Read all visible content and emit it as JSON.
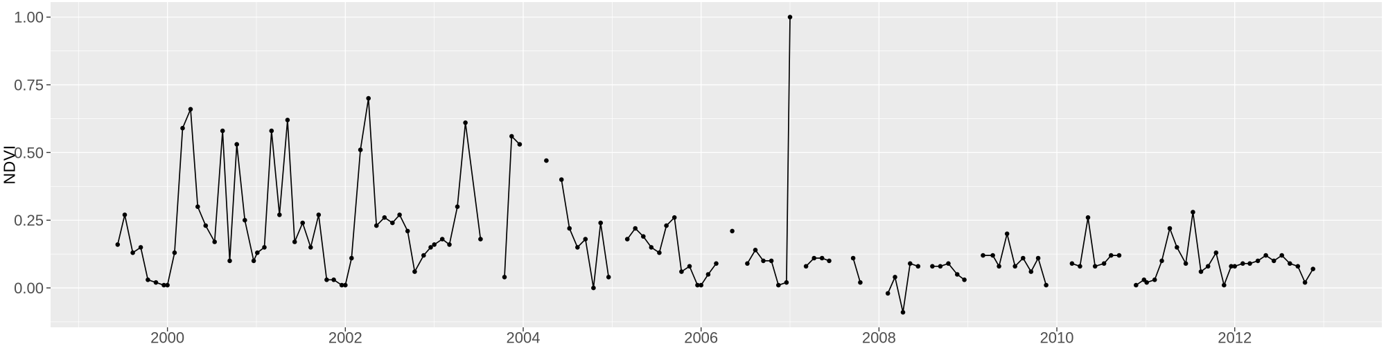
{
  "figure": {
    "kind": "ggplot-time-series",
    "ylabel": "NDVI"
  },
  "chart_data": {
    "type": "line",
    "title": "",
    "xlabel": "",
    "ylabel": "NDVI",
    "legend": null,
    "grid": "major-and-minor",
    "colors": {
      "panel_bg": "#EBEBEB",
      "grid": "#FFFFFF",
      "line": "#000000",
      "point": "#000000",
      "tick_label": "#4D4D4D",
      "axis_title": "#000000",
      "tick_mark": "#333333",
      "figure_bg": "#FFFFFF"
    },
    "x_axis": {
      "range": [
        1998.686,
        2013.654
      ],
      "major_ticks": [
        2000,
        2002,
        2004,
        2006,
        2008,
        2010,
        2012
      ],
      "tick_labels": [
        "2000",
        "2002",
        "2004",
        "2006",
        "2008",
        "2010",
        "2012"
      ],
      "minor_ticks": [
        1999,
        2001,
        2003,
        2005,
        2007,
        2009,
        2011,
        2013
      ]
    },
    "y_axis": {
      "range": [
        -0.1455,
        1.0555
      ],
      "major_ticks": [
        0,
        0.25,
        0.5,
        0.75,
        1
      ],
      "tick_labels": [
        "0.00",
        "0.25",
        "0.50",
        "0.75",
        "1.00"
      ],
      "minor_ticks": [
        -0.125,
        0.125,
        0.375,
        0.625,
        0.875
      ]
    },
    "series": [
      {
        "name": "NDVI",
        "segments": [
          [
            [
              1999.44,
              0.16
            ],
            [
              1999.52,
              0.27
            ],
            [
              1999.61,
              0.13
            ],
            [
              1999.7,
              0.15
            ],
            [
              1999.78,
              0.03
            ],
            [
              1999.87,
              0.02
            ],
            [
              1999.96,
              0.01
            ],
            [
              2000.0,
              0.01
            ],
            [
              2000.08,
              0.13
            ],
            [
              2000.17,
              0.59
            ],
            [
              2000.26,
              0.66
            ],
            [
              2000.34,
              0.3
            ],
            [
              2000.43,
              0.23
            ],
            [
              2000.53,
              0.17
            ],
            [
              2000.62,
              0.58
            ],
            [
              2000.7,
              0.1
            ],
            [
              2000.78,
              0.53
            ],
            [
              2000.87,
              0.25
            ],
            [
              2000.97,
              0.1
            ],
            [
              2001.01,
              0.13
            ],
            [
              2001.09,
              0.15
            ],
            [
              2001.17,
              0.58
            ],
            [
              2001.26,
              0.27
            ],
            [
              2001.35,
              0.62
            ],
            [
              2001.43,
              0.17
            ],
            [
              2001.52,
              0.24
            ],
            [
              2001.61,
              0.15
            ],
            [
              2001.7,
              0.27
            ],
            [
              2001.79,
              0.03
            ],
            [
              2001.87,
              0.03
            ],
            [
              2001.96,
              0.01
            ],
            [
              2002.0,
              0.01
            ],
            [
              2002.07,
              0.11
            ],
            [
              2002.17,
              0.51
            ],
            [
              2002.26,
              0.7
            ],
            [
              2002.35,
              0.23
            ],
            [
              2002.44,
              0.26
            ],
            [
              2002.53,
              0.24
            ],
            [
              2002.61,
              0.27
            ],
            [
              2002.7,
              0.21
            ],
            [
              2002.78,
              0.06
            ],
            [
              2002.88,
              0.12
            ],
            [
              2002.96,
              0.15
            ],
            [
              2003.0,
              0.16
            ],
            [
              2003.09,
              0.18
            ],
            [
              2003.17,
              0.16
            ],
            [
              2003.26,
              0.3
            ],
            [
              2003.35,
              0.61
            ],
            [
              2003.52,
              0.18
            ]
          ],
          [
            [
              2003.79,
              0.04
            ],
            [
              2003.87,
              0.56
            ],
            [
              2003.96,
              0.53
            ]
          ],
          [
            [
              2004.26,
              0.47
            ]
          ],
          [
            [
              2004.43,
              0.4
            ],
            [
              2004.52,
              0.22
            ],
            [
              2004.61,
              0.15
            ],
            [
              2004.7,
              0.18
            ],
            [
              2004.79,
              0.0
            ],
            [
              2004.87,
              0.24
            ],
            [
              2004.96,
              0.04
            ]
          ],
          [
            [
              2005.17,
              0.18
            ],
            [
              2005.26,
              0.22
            ],
            [
              2005.35,
              0.19
            ],
            [
              2005.44,
              0.15
            ],
            [
              2005.53,
              0.13
            ],
            [
              2005.61,
              0.23
            ],
            [
              2005.7,
              0.26
            ],
            [
              2005.78,
              0.06
            ],
            [
              2005.87,
              0.08
            ],
            [
              2005.96,
              0.01
            ],
            [
              2006.0,
              0.01
            ],
            [
              2006.08,
              0.05
            ],
            [
              2006.17,
              0.09
            ]
          ],
          [
            [
              2006.35,
              0.21
            ]
          ],
          [
            [
              2006.52,
              0.09
            ],
            [
              2006.61,
              0.14
            ],
            [
              2006.7,
              0.1
            ],
            [
              2006.79,
              0.1
            ],
            [
              2006.87,
              0.01
            ],
            [
              2006.96,
              0.02
            ],
            [
              2007.0,
              1.0
            ]
          ],
          [
            [
              2007.18,
              0.08
            ],
            [
              2007.27,
              0.11
            ],
            [
              2007.36,
              0.11
            ],
            [
              2007.44,
              0.1
            ]
          ],
          [
            [
              2007.71,
              0.11
            ],
            [
              2007.79,
              0.02
            ]
          ],
          [
            [
              2008.1,
              -0.02
            ],
            [
              2008.18,
              0.04
            ],
            [
              2008.27,
              -0.09
            ],
            [
              2008.35,
              0.09
            ],
            [
              2008.44,
              0.08
            ]
          ],
          [
            [
              2008.6,
              0.08
            ],
            [
              2008.69,
              0.08
            ],
            [
              2008.78,
              0.09
            ],
            [
              2008.88,
              0.05
            ],
            [
              2008.96,
              0.03
            ]
          ],
          [
            [
              2009.17,
              0.12
            ],
            [
              2009.28,
              0.12
            ],
            [
              2009.35,
              0.08
            ],
            [
              2009.44,
              0.2
            ],
            [
              2009.53,
              0.08
            ],
            [
              2009.62,
              0.11
            ],
            [
              2009.71,
              0.06
            ],
            [
              2009.79,
              0.11
            ],
            [
              2009.88,
              0.01
            ]
          ],
          [
            [
              2010.17,
              0.09
            ],
            [
              2010.26,
              0.08
            ],
            [
              2010.35,
              0.26
            ],
            [
              2010.43,
              0.08
            ],
            [
              2010.53,
              0.09
            ],
            [
              2010.61,
              0.12
            ],
            [
              2010.7,
              0.12
            ]
          ],
          [
            [
              2010.89,
              0.01
            ],
            [
              2010.98,
              0.03
            ],
            [
              2011.01,
              0.02
            ],
            [
              2011.1,
              0.03
            ],
            [
              2011.18,
              0.1
            ],
            [
              2011.27,
              0.22
            ],
            [
              2011.35,
              0.15
            ],
            [
              2011.45,
              0.09
            ],
            [
              2011.53,
              0.28
            ],
            [
              2011.62,
              0.06
            ],
            [
              2011.7,
              0.08
            ],
            [
              2011.79,
              0.13
            ],
            [
              2011.88,
              0.01
            ],
            [
              2011.96,
              0.08
            ],
            [
              2012.0,
              0.08
            ],
            [
              2012.09,
              0.09
            ],
            [
              2012.17,
              0.09
            ],
            [
              2012.26,
              0.1
            ],
            [
              2012.35,
              0.12
            ],
            [
              2012.44,
              0.1
            ],
            [
              2012.53,
              0.12
            ],
            [
              2012.62,
              0.09
            ],
            [
              2012.71,
              0.08
            ],
            [
              2012.79,
              0.02
            ],
            [
              2012.88,
              0.07
            ]
          ]
        ]
      }
    ],
    "style": {
      "point_radius": 3.3,
      "line_width": 1.7,
      "major_grid_width": 1.3,
      "minor_grid_width": 0.7,
      "tick_length": 6,
      "tick_font_size": 22
    }
  }
}
